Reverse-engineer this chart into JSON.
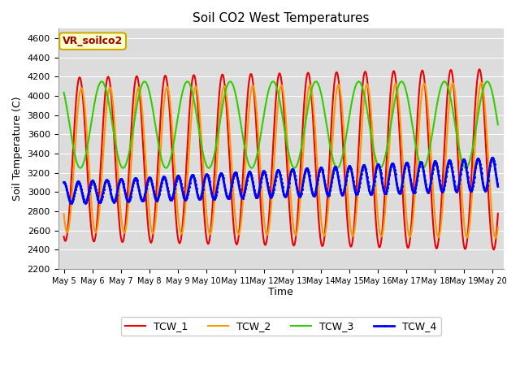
{
  "title": "Soil CO2 West Temperatures",
  "xlabel": "Time",
  "ylabel": "Soil Temperature (C)",
  "ylim": [
    2200,
    4700
  ],
  "xlim": [
    -0.2,
    15.4
  ],
  "annotation": "VR_soilco2",
  "bg_color": "#dcdcdc",
  "fig_color": "#ffffff",
  "grid_color": "#ffffff",
  "series": {
    "TCW_1": {
      "color": "#ee0000",
      "lw": 1.5
    },
    "TCW_2": {
      "color": "#ff9900",
      "lw": 1.5
    },
    "TCW_3": {
      "color": "#33cc00",
      "lw": 1.5
    },
    "TCW_4": {
      "color": "#0000ff",
      "lw": 2.0
    }
  },
  "xtick_labels": [
    "May 5",
    "May 6",
    "May 7",
    "May 8",
    "May 9",
    "May 10",
    "May 11",
    "May 12",
    "May 13",
    "May 14",
    "May 15",
    "May 16",
    "May 17",
    "May 18",
    "May 19",
    "May 20"
  ],
  "xtick_positions": [
    0,
    1,
    2,
    3,
    4,
    5,
    6,
    7,
    8,
    9,
    10,
    11,
    12,
    13,
    14,
    15
  ],
  "ytick_labels": [
    "2200",
    "2400",
    "2600",
    "2800",
    "3000",
    "3200",
    "3400",
    "3600",
    "3800",
    "4000",
    "4200",
    "4400",
    "4600"
  ],
  "ytick_values": [
    2200,
    2400,
    2600,
    2800,
    3000,
    3200,
    3400,
    3600,
    3800,
    4000,
    4200,
    4400,
    4600
  ]
}
